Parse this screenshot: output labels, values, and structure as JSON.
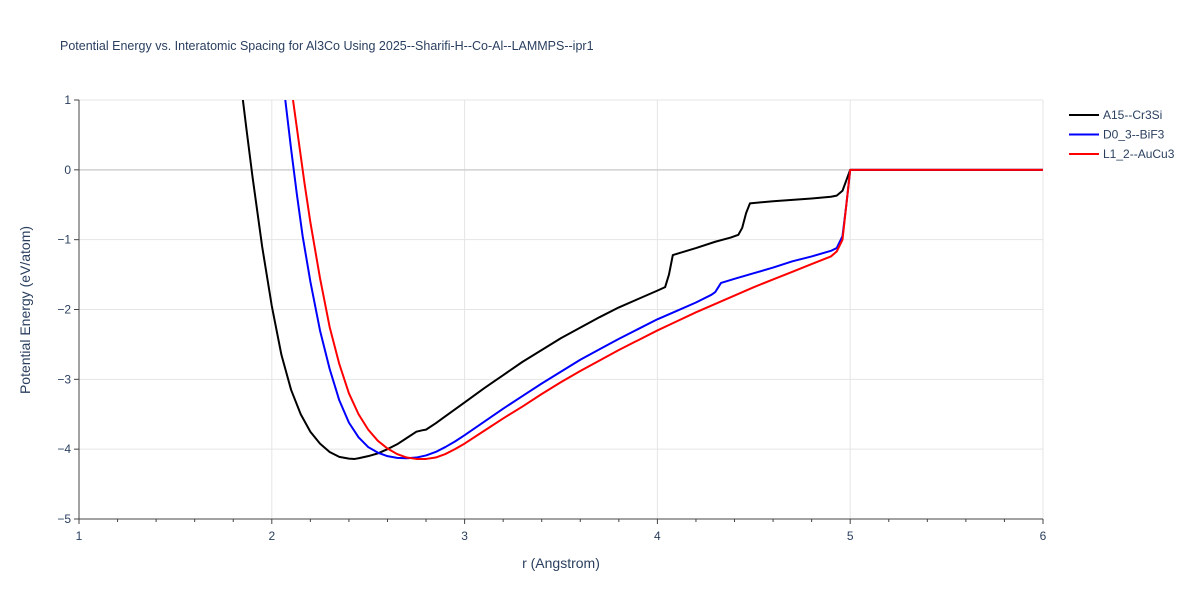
{
  "chart_data": {
    "type": "line",
    "title": "Potential Energy vs. Interatomic Spacing for Al3Co Using 2025--Sharifi-H--Co-Al--LAMMPS--ipr1",
    "xlabel": "r (Angstrom)",
    "ylabel": "Potential Energy (eV/atom)",
    "xlim": [
      1,
      6
    ],
    "ylim": [
      -5,
      1
    ],
    "x_ticks": [
      1,
      2,
      3,
      4,
      5,
      6
    ],
    "x_tick_labels": [
      "1",
      "2",
      "3",
      "4",
      "5",
      "6"
    ],
    "y_ticks": [
      1,
      0,
      -1,
      -2,
      -3,
      -4,
      -5
    ],
    "y_tick_labels": [
      "1",
      "0",
      "−1",
      "−2",
      "−3",
      "−4",
      "−5"
    ],
    "grid": true,
    "legend_position": "top-right",
    "series": [
      {
        "name": "A15--Cr3Si",
        "color": "#000000",
        "points": [
          [
            1.85,
            1.0
          ],
          [
            1.87,
            0.55
          ],
          [
            1.9,
            -0.1
          ],
          [
            1.95,
            -1.1
          ],
          [
            2.0,
            -1.95
          ],
          [
            2.05,
            -2.65
          ],
          [
            2.1,
            -3.15
          ],
          [
            2.15,
            -3.5
          ],
          [
            2.2,
            -3.75
          ],
          [
            2.25,
            -3.92
          ],
          [
            2.3,
            -4.04
          ],
          [
            2.35,
            -4.11
          ],
          [
            2.4,
            -4.135
          ],
          [
            2.43,
            -4.14
          ],
          [
            2.45,
            -4.13
          ],
          [
            2.5,
            -4.1
          ],
          [
            2.55,
            -4.06
          ],
          [
            2.6,
            -4.0
          ],
          [
            2.65,
            -3.93
          ],
          [
            2.7,
            -3.84
          ],
          [
            2.75,
            -3.75
          ],
          [
            2.78,
            -3.73
          ],
          [
            2.8,
            -3.72
          ],
          [
            2.85,
            -3.63
          ],
          [
            2.9,
            -3.53
          ],
          [
            3.0,
            -3.33
          ],
          [
            3.1,
            -3.13
          ],
          [
            3.2,
            -2.94
          ],
          [
            3.3,
            -2.75
          ],
          [
            3.4,
            -2.58
          ],
          [
            3.5,
            -2.41
          ],
          [
            3.6,
            -2.26
          ],
          [
            3.7,
            -2.11
          ],
          [
            3.8,
            -1.97
          ],
          [
            3.9,
            -1.85
          ],
          [
            4.0,
            -1.73
          ],
          [
            4.04,
            -1.68
          ],
          [
            4.06,
            -1.5
          ],
          [
            4.08,
            -1.22
          ],
          [
            4.2,
            -1.12
          ],
          [
            4.3,
            -1.03
          ],
          [
            4.38,
            -0.97
          ],
          [
            4.42,
            -0.93
          ],
          [
            4.44,
            -0.83
          ],
          [
            4.46,
            -0.62
          ],
          [
            4.48,
            -0.48
          ],
          [
            4.6,
            -0.45
          ],
          [
            4.7,
            -0.43
          ],
          [
            4.8,
            -0.41
          ],
          [
            4.9,
            -0.385
          ],
          [
            4.93,
            -0.37
          ],
          [
            4.96,
            -0.3
          ],
          [
            4.98,
            -0.15
          ],
          [
            5.0,
            0.0
          ],
          [
            5.2,
            0.0
          ],
          [
            5.5,
            0.0
          ],
          [
            6.0,
            0.0
          ]
        ]
      },
      {
        "name": "D0_3--BiF3",
        "color": "#0000ff",
        "points": [
          [
            2.07,
            1.0
          ],
          [
            2.1,
            0.3
          ],
          [
            2.13,
            -0.35
          ],
          [
            2.16,
            -0.95
          ],
          [
            2.2,
            -1.6
          ],
          [
            2.25,
            -2.3
          ],
          [
            2.3,
            -2.85
          ],
          [
            2.35,
            -3.3
          ],
          [
            2.4,
            -3.62
          ],
          [
            2.45,
            -3.83
          ],
          [
            2.5,
            -3.97
          ],
          [
            2.55,
            -4.05
          ],
          [
            2.6,
            -4.1
          ],
          [
            2.65,
            -4.125
          ],
          [
            2.7,
            -4.13
          ],
          [
            2.75,
            -4.12
          ],
          [
            2.8,
            -4.09
          ],
          [
            2.85,
            -4.04
          ],
          [
            2.9,
            -3.97
          ],
          [
            2.95,
            -3.89
          ],
          [
            3.0,
            -3.8
          ],
          [
            3.1,
            -3.61
          ],
          [
            3.2,
            -3.42
          ],
          [
            3.3,
            -3.24
          ],
          [
            3.4,
            -3.06
          ],
          [
            3.5,
            -2.89
          ],
          [
            3.6,
            -2.72
          ],
          [
            3.7,
            -2.57
          ],
          [
            3.8,
            -2.42
          ],
          [
            3.9,
            -2.28
          ],
          [
            4.0,
            -2.14
          ],
          [
            4.1,
            -2.02
          ],
          [
            4.2,
            -1.9
          ],
          [
            4.28,
            -1.79
          ],
          [
            4.3,
            -1.75
          ],
          [
            4.33,
            -1.62
          ],
          [
            4.4,
            -1.56
          ],
          [
            4.5,
            -1.48
          ],
          [
            4.6,
            -1.4
          ],
          [
            4.7,
            -1.31
          ],
          [
            4.8,
            -1.24
          ],
          [
            4.9,
            -1.16
          ],
          [
            4.93,
            -1.12
          ],
          [
            4.96,
            -0.95
          ],
          [
            4.98,
            -0.5
          ],
          [
            5.0,
            0.0
          ],
          [
            5.2,
            0.0
          ],
          [
            5.5,
            0.0
          ],
          [
            6.0,
            0.0
          ]
        ]
      },
      {
        "name": "L1_2--AuCu3",
        "color": "#ff0000",
        "points": [
          [
            2.11,
            1.0
          ],
          [
            2.14,
            0.4
          ],
          [
            2.17,
            -0.2
          ],
          [
            2.2,
            -0.75
          ],
          [
            2.25,
            -1.55
          ],
          [
            2.3,
            -2.25
          ],
          [
            2.35,
            -2.78
          ],
          [
            2.4,
            -3.2
          ],
          [
            2.45,
            -3.5
          ],
          [
            2.5,
            -3.72
          ],
          [
            2.55,
            -3.88
          ],
          [
            2.6,
            -3.99
          ],
          [
            2.65,
            -4.07
          ],
          [
            2.7,
            -4.12
          ],
          [
            2.75,
            -4.14
          ],
          [
            2.8,
            -4.14
          ],
          [
            2.85,
            -4.12
          ],
          [
            2.9,
            -4.07
          ],
          [
            2.95,
            -4.0
          ],
          [
            3.0,
            -3.92
          ],
          [
            3.1,
            -3.74
          ],
          [
            3.2,
            -3.56
          ],
          [
            3.3,
            -3.39
          ],
          [
            3.4,
            -3.21
          ],
          [
            3.5,
            -3.04
          ],
          [
            3.6,
            -2.88
          ],
          [
            3.7,
            -2.73
          ],
          [
            3.8,
            -2.58
          ],
          [
            3.9,
            -2.44
          ],
          [
            4.0,
            -2.3
          ],
          [
            4.1,
            -2.17
          ],
          [
            4.2,
            -2.04
          ],
          [
            4.3,
            -1.92
          ],
          [
            4.4,
            -1.8
          ],
          [
            4.5,
            -1.68
          ],
          [
            4.6,
            -1.57
          ],
          [
            4.7,
            -1.46
          ],
          [
            4.8,
            -1.35
          ],
          [
            4.9,
            -1.24
          ],
          [
            4.93,
            -1.17
          ],
          [
            4.96,
            -1.0
          ],
          [
            4.98,
            -0.5
          ],
          [
            5.0,
            0.0
          ],
          [
            5.2,
            0.0
          ],
          [
            5.5,
            0.0
          ],
          [
            6.0,
            0.0
          ]
        ]
      }
    ]
  }
}
